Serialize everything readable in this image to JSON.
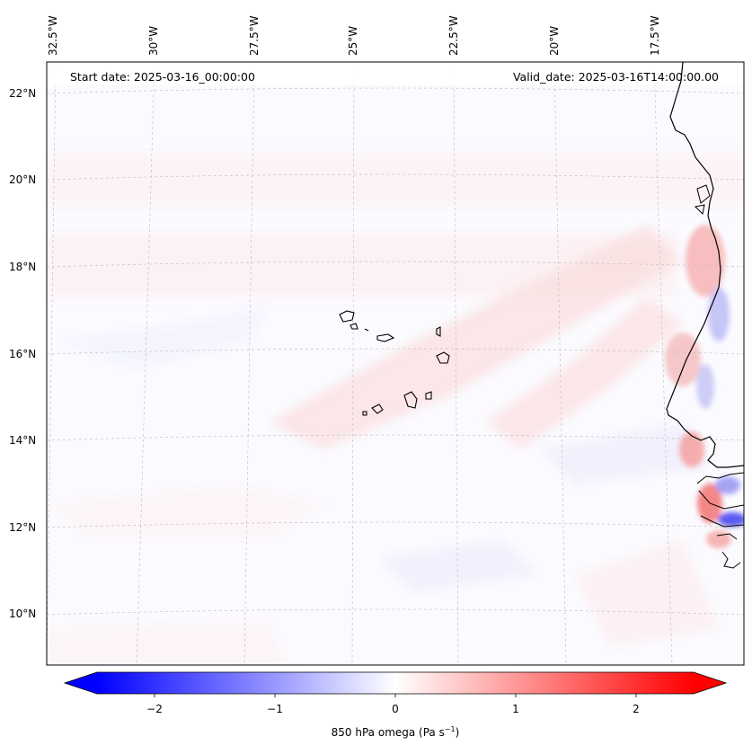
{
  "header": {
    "start_date": "Start date: 2025-03-16_00:00:00",
    "valid_date": "Valid_date: 2025-03-16T14:00:00.00"
  },
  "map": {
    "lon_labels": [
      "32.5°W",
      "30°W",
      "27.5°W",
      "25°W",
      "22.5°W",
      "20°W",
      "17.5°W"
    ],
    "lat_labels": [
      "22°N",
      "20°N",
      "18°N",
      "16°N",
      "14°N",
      "12°N",
      "10°N"
    ],
    "field": "850 hPa omega",
    "gridlines": true
  },
  "colorbar": {
    "ticks": [
      "−2",
      "−1",
      "0",
      "1",
      "2"
    ],
    "tick_values": [
      -2,
      -1,
      0,
      1,
      2
    ],
    "range": [
      -2.6,
      2.6
    ],
    "title_main": "850 hPa omega (Pa s",
    "title_sup": "−1",
    "title_end": ")",
    "colors": {
      "negative": "#0000ff",
      "zero": "#ffffff",
      "positive": "#ff0000"
    },
    "extend": "both"
  }
}
